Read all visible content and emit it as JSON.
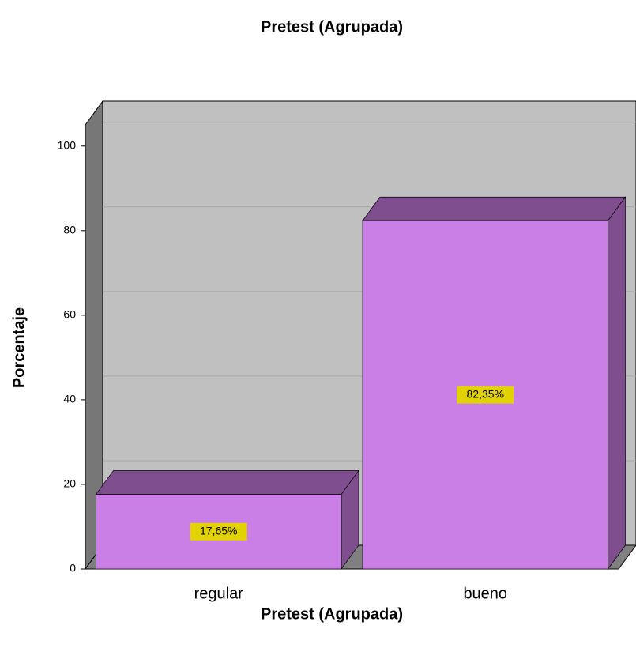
{
  "chart_data": {
    "type": "bar",
    "title": "Pretest (Agrupada)",
    "x_label": "Pretest (Agrupada)",
    "y_label": "Porcentaje",
    "categories": [
      "regular",
      "bueno"
    ],
    "values": [
      17.65,
      82.35
    ],
    "value_labels": [
      "17,65%",
      "82,35%"
    ],
    "color": "#c97fe6",
    "ylim": [
      0,
      105
    ],
    "yticks": [
      0,
      20,
      40,
      60,
      80,
      100
    ],
    "grid": true
  }
}
